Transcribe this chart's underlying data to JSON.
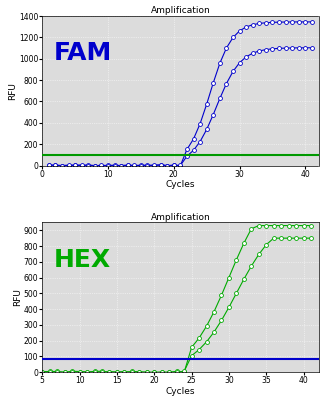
{
  "fam_title": "Amplification",
  "hex_title": "Amplification",
  "fam_label": "FAM",
  "hex_label": "HEX",
  "xlabel": "Cycles",
  "ylabel": "RFU",
  "fam_color": "#0000cc",
  "hex_color": "#00aa00",
  "threshold_fam_color": "#009900",
  "threshold_hex_color": "#0000cc",
  "fam_threshold": 100,
  "hex_threshold": 80,
  "fam_ylim": [
    0,
    1400
  ],
  "hex_ylim": [
    0,
    950
  ],
  "fam_yticks": [
    0,
    200,
    400,
    600,
    800,
    1000,
    1200,
    1400
  ],
  "hex_yticks": [
    0,
    100,
    200,
    300,
    400,
    500,
    600,
    700,
    800,
    900
  ],
  "fam_xticks": [
    0,
    10,
    20,
    30,
    40
  ],
  "hex_xticks": [
    5,
    10,
    15,
    20,
    25,
    30,
    35,
    40
  ],
  "fam_xlim": [
    0,
    42
  ],
  "hex_xlim": [
    5,
    42
  ],
  "background_color": "#dcdcdc",
  "title_fontsize": 6.5,
  "axis_label_fontsize": 6.5,
  "tick_fontsize": 5.5,
  "fam_label_fontsize": 18,
  "hex_label_fontsize": 18
}
